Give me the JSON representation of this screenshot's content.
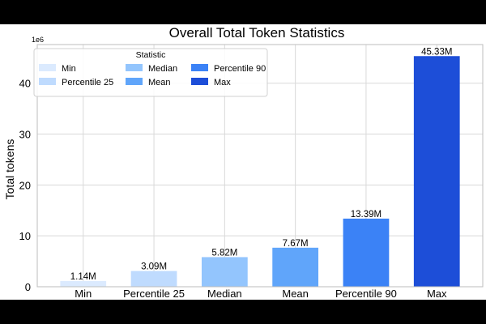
{
  "chart_data": {
    "type": "bar",
    "title": "Overall Total Token Statistics",
    "xlabel": "",
    "ylabel": "Total tokens",
    "y_offset_label": "1e6",
    "categories": [
      "Min",
      "Percentile 25",
      "Median",
      "Mean",
      "Percentile 90",
      "Max"
    ],
    "values": [
      1.14,
      3.09,
      5.82,
      7.67,
      13.39,
      45.33
    ],
    "value_labels": [
      "1.14M",
      "3.09M",
      "5.82M",
      "7.67M",
      "13.39M",
      "45.33M"
    ],
    "colors": [
      "#dbeafe",
      "#bfdbfe",
      "#93c5fd",
      "#60a5fa",
      "#3b82f6",
      "#1d4ed8"
    ],
    "ylim": [
      0,
      47.6
    ],
    "yticks": [
      0,
      10,
      20,
      30,
      40
    ],
    "grid": true,
    "legend": {
      "title": "Statistic",
      "placement": "top-left",
      "entries": [
        "Min",
        "Percentile 25",
        "Median",
        "Mean",
        "Percentile 90",
        "Max"
      ]
    }
  }
}
